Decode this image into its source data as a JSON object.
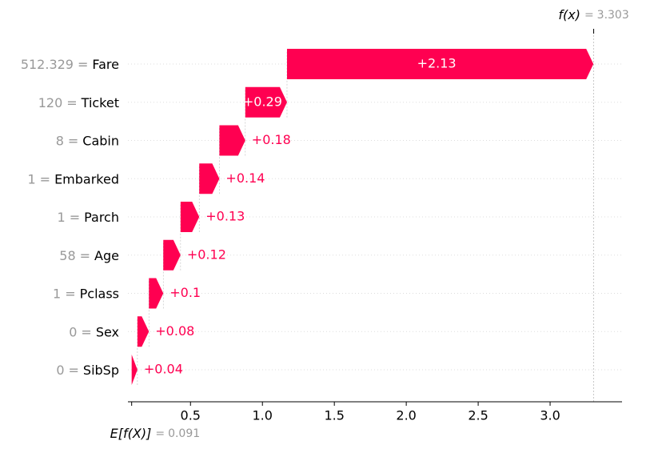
{
  "chart_data": {
    "type": "waterfall",
    "categories": [
      "Fare",
      "Ticket",
      "Cabin",
      "Embarked",
      "Parch",
      "Age",
      "Pclass",
      "Sex",
      "SibSp"
    ],
    "feature_values": [
      "512.329",
      "120",
      "8",
      "1",
      "1",
      "58",
      "1",
      "0",
      "0"
    ],
    "separator": "=",
    "values": [
      2.13,
      0.29,
      0.18,
      0.14,
      0.13,
      0.12,
      0.1,
      0.08,
      0.04
    ],
    "value_labels": [
      "+2.13",
      "+0.29",
      "+0.18",
      "+0.14",
      "+0.13",
      "+0.12",
      "+0.1",
      "+0.08",
      "+0.04"
    ],
    "color": "#ff0051",
    "base_label": "E[f(X)]",
    "base_value": 0.091,
    "output_label": "f(x)",
    "output_value": 3.303,
    "xlim": [
      0.065,
      3.5
    ],
    "xticks": [
      0.5,
      {
        "value": 1,
        "label": "1.0"
      },
      1.5,
      {
        "value": 2,
        "label": "2.0"
      },
      2.5,
      {
        "value": 3,
        "label": "3.0"
      }
    ],
    "grid": true
  }
}
